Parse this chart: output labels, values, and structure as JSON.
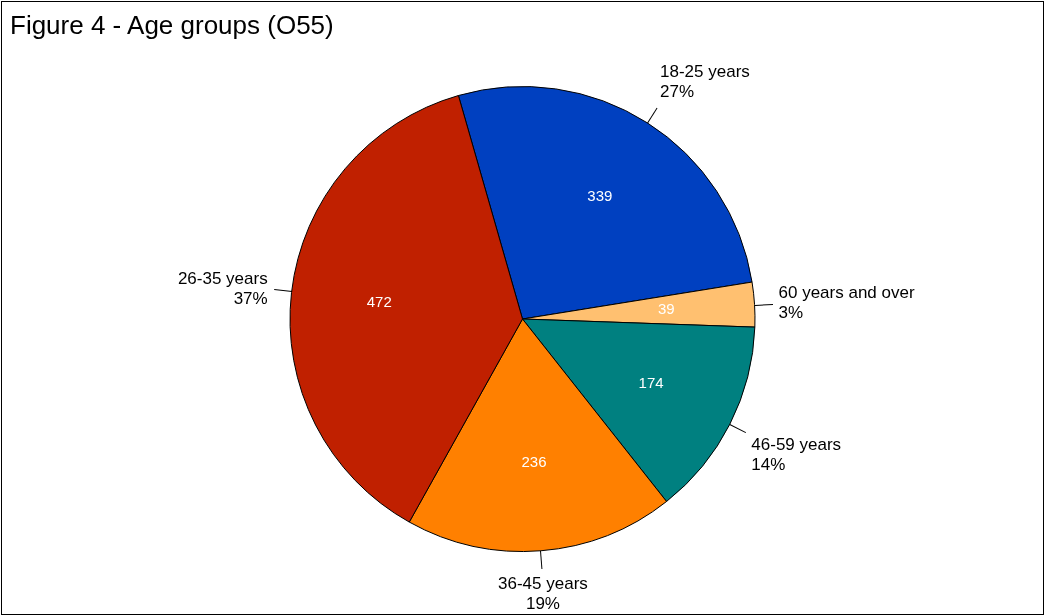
{
  "chart_data": {
    "type": "pie",
    "title": "Figure 4 - Age groups (O55)",
    "categories": [
      "18-25 years",
      "60 years and over",
      "46-59 years",
      "36-45 years",
      "26-35 years"
    ],
    "values": [
      339,
      39,
      174,
      236,
      472
    ],
    "colors": [
      "#0040c0",
      "#ffc070",
      "#008080",
      "#ff8000",
      "#c02000"
    ],
    "annotations": [
      {
        "text": "27%",
        "x": "18-25 years"
      },
      {
        "text": "3%",
        "x": "60 years and over"
      },
      {
        "text": "14%",
        "x": "46-59 years"
      },
      {
        "text": "19%",
        "x": "36-45 years"
      },
      {
        "text": "37%",
        "x": "26-35 years"
      }
    ],
    "data_labels": true
  }
}
